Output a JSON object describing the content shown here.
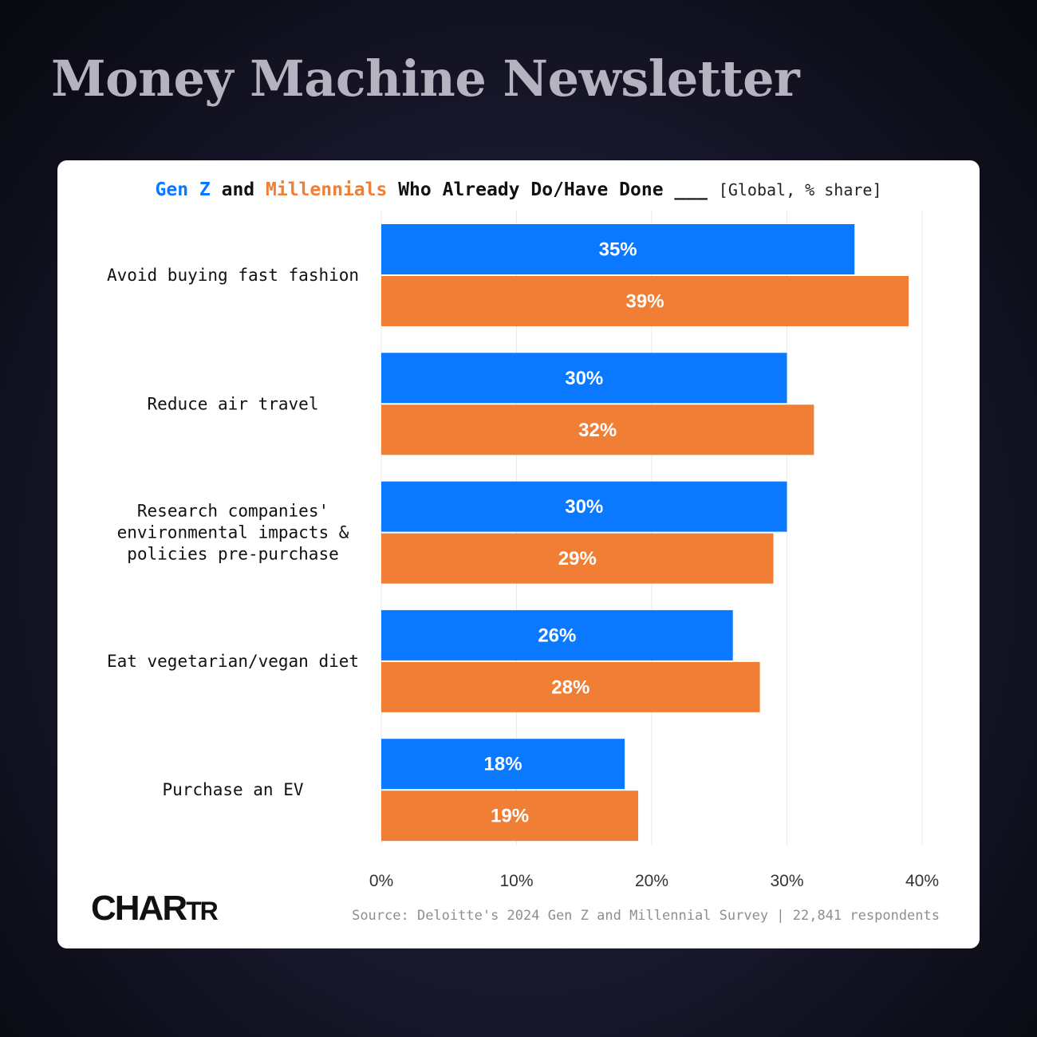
{
  "header": {
    "newsletter_title": "Money Machine Newsletter"
  },
  "chart_title": {
    "series_a": "Gen Z",
    "conj": "and",
    "series_b": "Millennials",
    "rest": "Who Already Do/Have Done ___",
    "unit": "[Global, % share]"
  },
  "colors": {
    "gen_z": "#0a78ff",
    "millennials": "#f07f35"
  },
  "chart_data": {
    "type": "bar",
    "orientation": "horizontal",
    "categories": [
      [
        "Avoid buying fast fashion"
      ],
      [
        "Reduce air travel"
      ],
      [
        "Research companies'",
        "environmental impacts &",
        "policies pre-purchase"
      ],
      [
        "Eat vegetarian/vegan diet"
      ],
      [
        "Purchase an EV"
      ]
    ],
    "series": [
      {
        "name": "Gen Z",
        "values": [
          35,
          30,
          30,
          26,
          18
        ]
      },
      {
        "name": "Millennials",
        "values": [
          39,
          32,
          29,
          28,
          19
        ]
      }
    ],
    "value_format": "{v}%",
    "xlim": [
      0,
      40
    ],
    "xticks": [
      0,
      10,
      20,
      30,
      40
    ],
    "xtick_labels": [
      "0%",
      "10%",
      "20%",
      "30%",
      "40%"
    ],
    "grid": "vertical"
  },
  "footer": {
    "logo_big_1": "C",
    "logo_mid": "HAR",
    "logo_small": "TR",
    "source": "Source: Deloitte's 2024 Gen Z and Millennial Survey | 22,841 respondents"
  }
}
